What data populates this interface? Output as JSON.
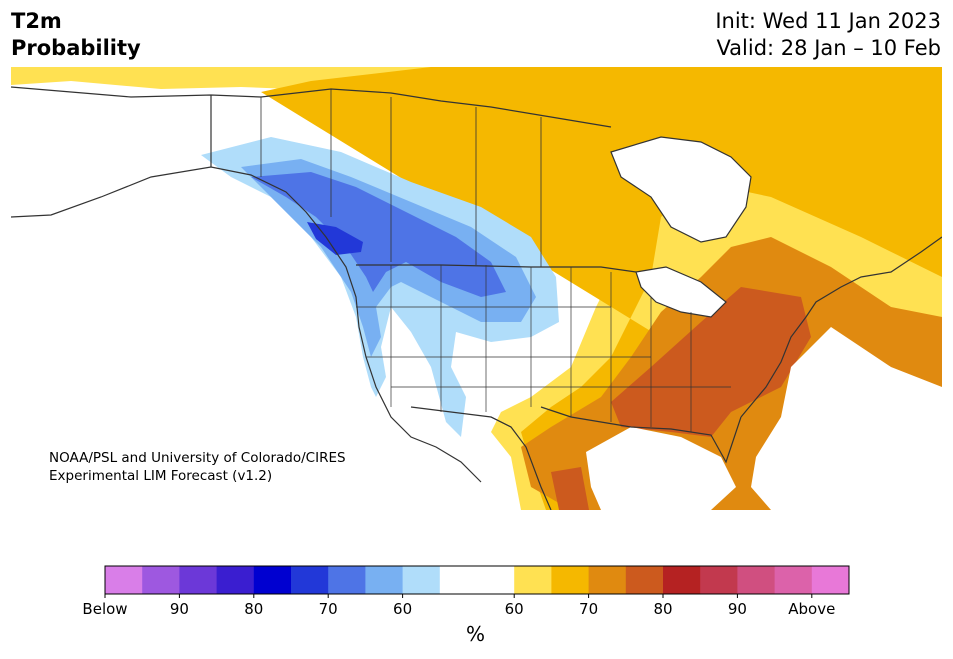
{
  "header": {
    "variable": "T2m",
    "product": "Probability",
    "init": "Init: Wed 11 Jan 2023",
    "valid": "Valid: 28 Jan – 10 Feb"
  },
  "credit": {
    "line1": "NOAA/PSL and University of Colorado/CIRES",
    "line2": "Experimental LIM Forecast (v1.2)"
  },
  "colorbar": {
    "unit": "%",
    "below_colors": [
      "#d97ee8",
      "#9e58e0",
      "#6c38d8",
      "#3a1ed0",
      "#0000d0",
      "#2238d8",
      "#4e74e6",
      "#78b0f2",
      "#b0ddfa"
    ],
    "neutral_color": "#ffffff",
    "above_colors": [
      "#ffe152",
      "#f5b800",
      "#e08a10",
      "#cc5a1e",
      "#b52222",
      "#c2394e",
      "#d04f80",
      "#dc62aa",
      "#e878d8"
    ],
    "ticks_below": [
      "Below",
      "90",
      "80",
      "70",
      "60"
    ],
    "ticks_above": [
      "60",
      "70",
      "80",
      "90",
      "Above"
    ]
  },
  "map": {
    "region": "North America",
    "colors": {
      "above_50": "#ffe152",
      "above_60": "#f5b800",
      "above_70": "#e08a10",
      "above_80": "#cc5a1e",
      "below_50": "#b0ddfa",
      "below_60": "#78b0f2",
      "below_70": "#4e74e6",
      "below_80": "#2238d8",
      "neutral": "#ffffff",
      "border": "#333333"
    }
  }
}
